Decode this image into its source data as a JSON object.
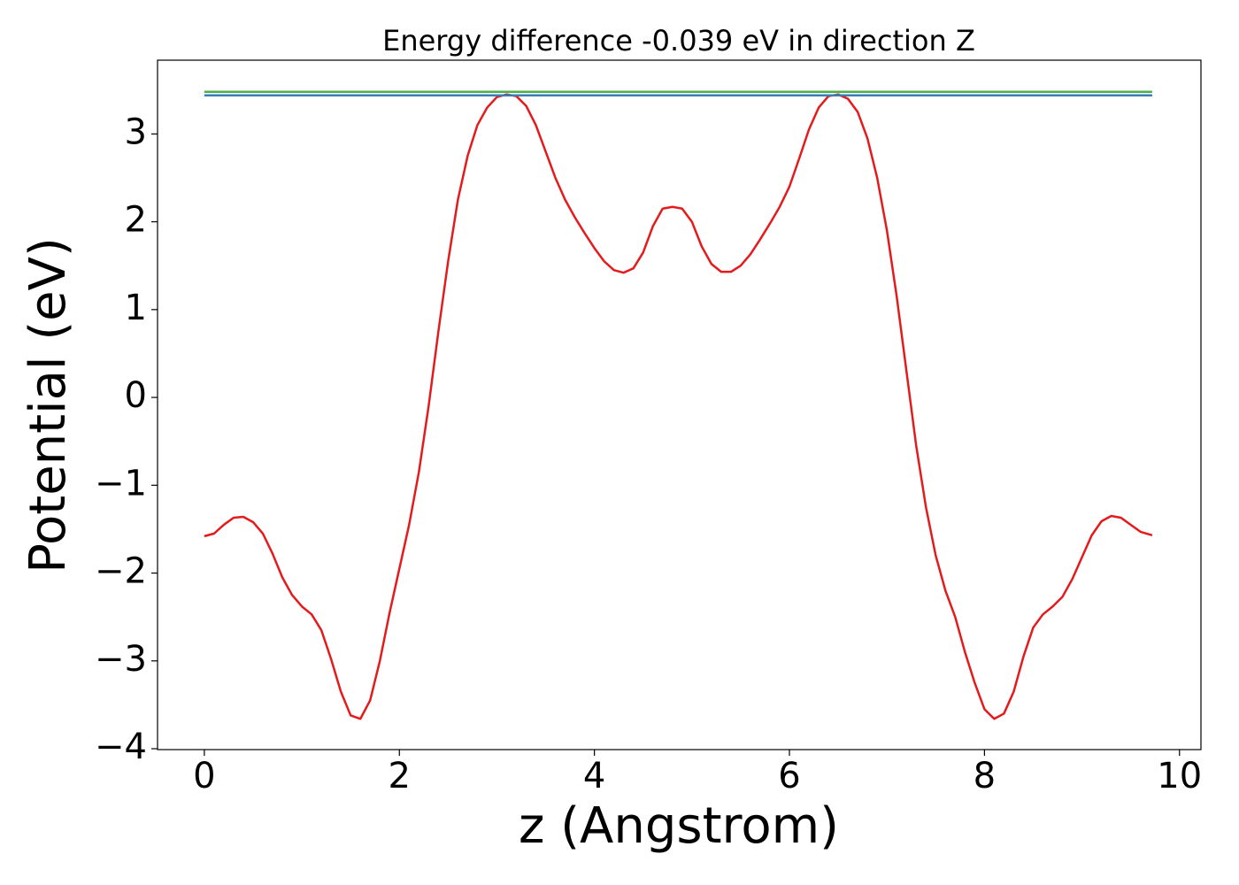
{
  "chart_data": {
    "type": "line",
    "title": "Energy difference -0.039 eV in direction Z",
    "xlabel": "z (Angstrom)",
    "ylabel": "Potential (eV)",
    "xlim": [
      -0.48,
      10.22
    ],
    "ylim": [
      -4.01,
      3.84
    ],
    "xticks": [
      0,
      2,
      4,
      6,
      8,
      10
    ],
    "yticks": [
      {
        "value": -4,
        "label": "−4"
      },
      {
        "value": -3,
        "label": "−3"
      },
      {
        "value": -2,
        "label": "−2"
      },
      {
        "value": -1,
        "label": "−1"
      },
      0,
      1,
      2,
      3
    ],
    "grid": false,
    "series": [
      {
        "color": "#e41a1c",
        "x": [
          0,
          0.1,
          0.2,
          0.3,
          0.4,
          0.5,
          0.6,
          0.7,
          0.8,
          0.9,
          1.0,
          1.1,
          1.2,
          1.3,
          1.4,
          1.5,
          1.6,
          1.7,
          1.8,
          1.9,
          2.0,
          2.1,
          2.2,
          2.3,
          2.4,
          2.5,
          2.6,
          2.7,
          2.8,
          2.9,
          3.0,
          3.1,
          3.2,
          3.3,
          3.4,
          3.5,
          3.6,
          3.7,
          3.8,
          3.9,
          4.0,
          4.1,
          4.2,
          4.3,
          4.4,
          4.5,
          4.6,
          4.7,
          4.8,
          4.9,
          5.0,
          5.1,
          5.2,
          5.3,
          5.4,
          5.5,
          5.6,
          5.7,
          5.8,
          5.9,
          6.0,
          6.1,
          6.2,
          6.3,
          6.4,
          6.5,
          6.6,
          6.7,
          6.8,
          6.9,
          7.0,
          7.1,
          7.2,
          7.3,
          7.4,
          7.5,
          7.6,
          7.7,
          7.8,
          7.9,
          8.0,
          8.1,
          8.2,
          8.3,
          8.4,
          8.5,
          8.6,
          8.7,
          8.8,
          8.9,
          9.0,
          9.1,
          9.2,
          9.3,
          9.4,
          9.5,
          9.6,
          9.72
        ],
        "values": [
          -1.58,
          -1.55,
          -1.45,
          -1.37,
          -1.36,
          -1.42,
          -1.55,
          -1.78,
          -2.05,
          -2.25,
          -2.38,
          -2.47,
          -2.65,
          -2.98,
          -3.35,
          -3.62,
          -3.66,
          -3.45,
          -3.0,
          -2.45,
          -1.95,
          -1.45,
          -0.85,
          -0.1,
          0.75,
          1.55,
          2.25,
          2.75,
          3.1,
          3.3,
          3.42,
          3.45,
          3.43,
          3.32,
          3.1,
          2.8,
          2.5,
          2.25,
          2.05,
          1.87,
          1.7,
          1.55,
          1.45,
          1.42,
          1.47,
          1.65,
          1.95,
          2.15,
          2.17,
          2.15,
          2.0,
          1.72,
          1.52,
          1.43,
          1.43,
          1.5,
          1.63,
          1.8,
          1.98,
          2.17,
          2.4,
          2.72,
          3.05,
          3.3,
          3.43,
          3.45,
          3.4,
          3.25,
          2.95,
          2.5,
          1.9,
          1.15,
          0.3,
          -0.55,
          -1.25,
          -1.8,
          -2.2,
          -2.5,
          -2.9,
          -3.25,
          -3.55,
          -3.66,
          -3.6,
          -3.35,
          -2.95,
          -2.62,
          -2.47,
          -2.38,
          -2.27,
          -2.07,
          -1.82,
          -1.57,
          -1.41,
          -1.35,
          -1.37,
          -1.45,
          -1.53,
          -1.57
        ]
      },
      {
        "color": "#4daf4a",
        "x": [
          0,
          9.72
        ],
        "values": [
          3.48,
          3.48
        ]
      },
      {
        "color": "#377eb8",
        "x": [
          0,
          9.72
        ],
        "values": [
          3.44,
          3.44
        ]
      }
    ]
  }
}
